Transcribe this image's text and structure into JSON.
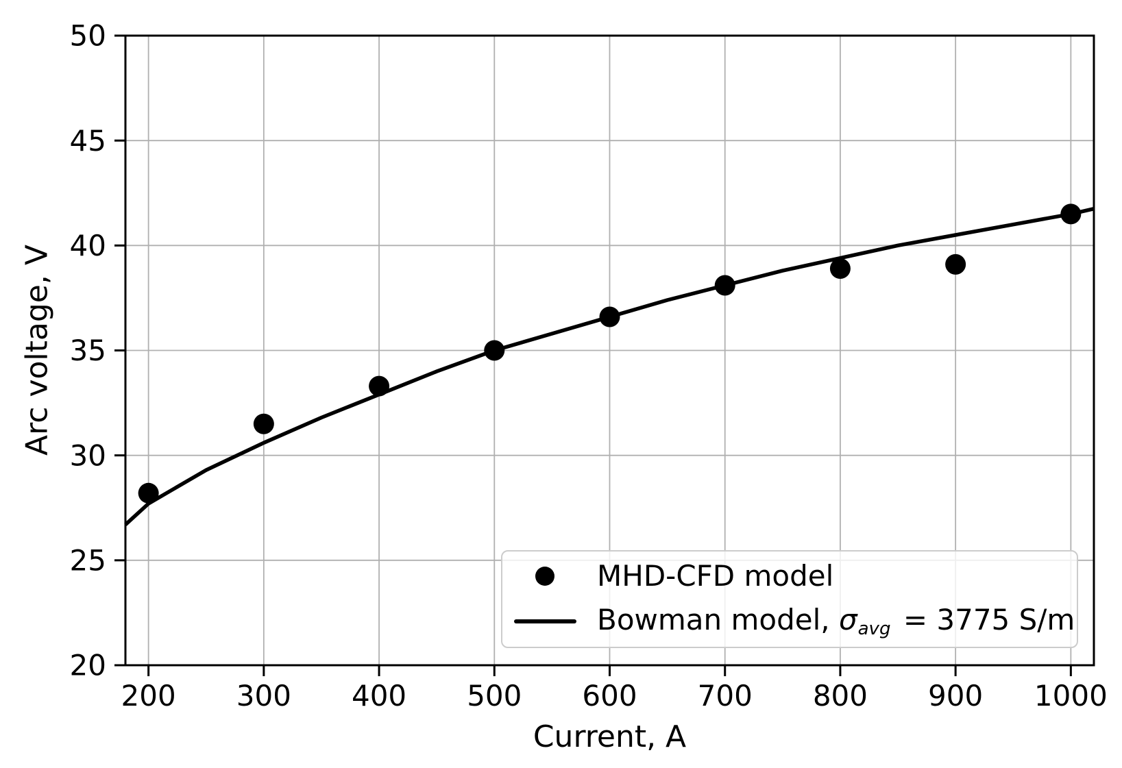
{
  "chart_data": {
    "type": "scatter",
    "title": "",
    "xlabel": "Current, A",
    "ylabel": "Arc voltage, V",
    "xlim": [
      180,
      1020
    ],
    "ylim": [
      20,
      50
    ],
    "xticks": [
      200,
      300,
      400,
      500,
      600,
      700,
      800,
      900,
      1000
    ],
    "yticks": [
      20,
      25,
      30,
      35,
      40,
      45,
      50
    ],
    "grid": true,
    "legend_position": "lower right",
    "series": [
      {
        "name": "MHD-CFD model",
        "type": "scatter",
        "marker": "circle",
        "color": "#000000",
        "x": [
          200,
          300,
          400,
          500,
          600,
          700,
          800,
          900,
          1000
        ],
        "y": [
          28.2,
          31.5,
          33.3,
          35.0,
          36.6,
          38.1,
          38.9,
          39.1,
          41.5
        ]
      },
      {
        "name": "Bowman model, sigma_avg = 3775 S/m",
        "type": "line",
        "color": "#000000",
        "x": [
          180,
          200,
          250,
          300,
          350,
          400,
          450,
          500,
          550,
          600,
          650,
          700,
          750,
          800,
          850,
          900,
          950,
          1000,
          1020
        ],
        "y": [
          26.7,
          27.7,
          29.3,
          30.6,
          31.8,
          32.9,
          34.0,
          35.0,
          35.8,
          36.6,
          37.4,
          38.1,
          38.8,
          39.4,
          40.0,
          40.5,
          41.0,
          41.5,
          41.75
        ]
      }
    ]
  },
  "legend": {
    "items": [
      {
        "marker": "dot",
        "label": "MHD-CFD model"
      },
      {
        "marker": "line",
        "label_prefix": "Bowman model, ",
        "symbol": "σ",
        "symbol_sub": "avg",
        "label_suffix": " = 3775 S/m"
      }
    ]
  },
  "colors": {
    "foreground": "#000000",
    "grid": "#b0b0b0",
    "legend_border": "#cccccc",
    "background": "#ffffff"
  }
}
